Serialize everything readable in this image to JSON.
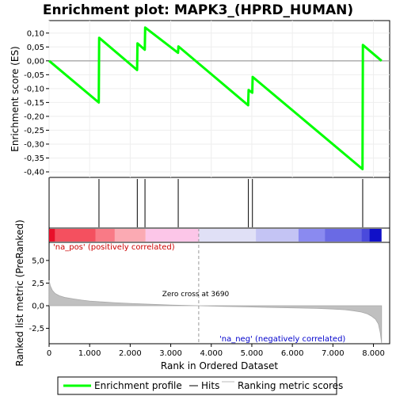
{
  "chart_data": {
    "type": "line",
    "title": "Enrichment plot: MAPK3_(HPRD_HUMAN)",
    "es_panel": {
      "ylabel": "Enrichment score (ES)",
      "ylim": [
        -0.42,
        0.145
      ],
      "yticks": [
        "0,10",
        "0,05",
        "0,00",
        "-0,05",
        "-0,10",
        "-0,15",
        "-0,20",
        "-0,25",
        "-0,30",
        "-0,35",
        "-0,40"
      ],
      "ytick_values": [
        0.1,
        0.05,
        0.0,
        -0.05,
        -0.1,
        -0.15,
        -0.2,
        -0.25,
        -0.3,
        -0.35,
        -0.4
      ],
      "series": [
        {
          "name": "Enrichment profile",
          "color": "#00ff00",
          "x": [
            0,
            1225,
            1235,
            2170,
            2180,
            2360,
            2370,
            3180,
            3190,
            4910,
            4920,
            5010,
            5020,
            7730,
            7740,
            8200
          ],
          "y": [
            0.0,
            -0.15,
            0.083,
            -0.033,
            0.063,
            0.04,
            0.12,
            0.029,
            0.052,
            -0.16,
            -0.105,
            -0.115,
            -0.058,
            -0.39,
            0.057,
            0.0
          ]
        }
      ]
    },
    "hits": {
      "name": "Hits",
      "color": "#000000",
      "positions": [
        1230,
        2175,
        2365,
        3185,
        4915,
        5015,
        7735
      ]
    },
    "colorbar": {
      "segments": [
        {
          "start": 0,
          "end": 150,
          "color": "#e8102a"
        },
        {
          "start": 150,
          "end": 1150,
          "color": "#f4505f"
        },
        {
          "start": 1150,
          "end": 1620,
          "color": "#f97a86"
        },
        {
          "start": 1620,
          "end": 2380,
          "color": "#fbaab3"
        },
        {
          "start": 2380,
          "end": 3700,
          "color": "#fcc6e8"
        },
        {
          "start": 3700,
          "end": 5100,
          "color": "#e0e0f6"
        },
        {
          "start": 5100,
          "end": 6150,
          "color": "#c4c4f4"
        },
        {
          "start": 6150,
          "end": 6800,
          "color": "#8a8af0"
        },
        {
          "start": 6800,
          "end": 7700,
          "color": "#6a6ae4"
        },
        {
          "start": 7700,
          "end": 7900,
          "color": "#4a4adc"
        },
        {
          "start": 7900,
          "end": 8200,
          "color": "#1010c8"
        }
      ]
    },
    "metric_panel": {
      "name": "Ranking metric scores",
      "ylabel": "Ranked list metric (PreRanked)",
      "xlabel": "Rank in Ordered Dataset",
      "ylim": [
        -4.2,
        7.0
      ],
      "yticks": [
        "5,0",
        "2,5",
        "0,0",
        "-2,5"
      ],
      "ytick_values": [
        5.0,
        2.5,
        0.0,
        -2.5
      ],
      "xlim": [
        0,
        8400
      ],
      "xticks": [
        "0",
        "1.000",
        "2.000",
        "3.000",
        "4.000",
        "5.000",
        "6.000",
        "7.000",
        "8.000"
      ],
      "xtick_values": [
        0,
        1000,
        2000,
        3000,
        4000,
        5000,
        6000,
        7000,
        8000
      ],
      "curve": {
        "x": [
          0,
          30,
          80,
          150,
          250,
          400,
          600,
          800,
          1000,
          1300,
          1600,
          2000,
          2500,
          3000,
          3690,
          4200,
          4800,
          5400,
          6000,
          6600,
          7000,
          7300,
          7500,
          7700,
          7850,
          7950,
          8050,
          8120,
          8170,
          8200
        ],
        "y": [
          2.8,
          2.2,
          1.7,
          1.35,
          1.1,
          0.9,
          0.75,
          0.62,
          0.52,
          0.42,
          0.34,
          0.25,
          0.16,
          0.08,
          0.0,
          -0.06,
          -0.12,
          -0.18,
          -0.24,
          -0.3,
          -0.37,
          -0.45,
          -0.55,
          -0.7,
          -0.9,
          -1.15,
          -1.5,
          -2.0,
          -3.0,
          -4.1
        ]
      },
      "zero_cross": 3690,
      "zero_cross_label": "Zero cross at 3690",
      "pos_label": "'na_pos' (positively correlated)",
      "neg_label": "'na_neg' (negatively correlated)",
      "pos_color": "#cc0000",
      "neg_color": "#0000cc"
    },
    "legend": [
      {
        "label": "Enrichment profile",
        "color": "#00ff00",
        "kind": "thick"
      },
      {
        "label": "Hits",
        "color": "#000000",
        "kind": "thin"
      },
      {
        "label": "Ranking metric scores",
        "color": "#bbbbbb",
        "kind": "thin"
      }
    ]
  }
}
